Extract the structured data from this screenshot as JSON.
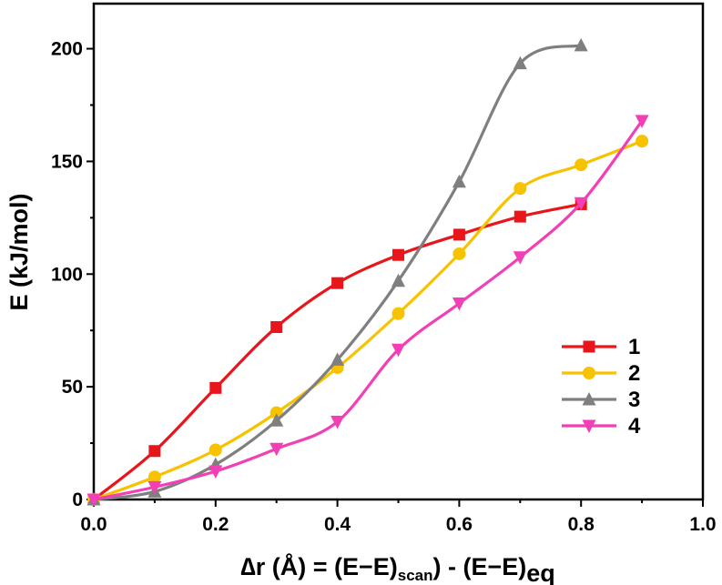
{
  "chart_data": {
    "type": "line",
    "title": "",
    "xlabel": {
      "delta_r": "∆r (Å) = (E−E)",
      "sub_scan": "scan",
      "mid": ") - (E−E)",
      "sub_eq": "eq"
    },
    "ylabel": "E (kJ/mol)",
    "xlim": [
      0.0,
      1.0
    ],
    "ylim": [
      0,
      220
    ],
    "xticks": [
      "0.0",
      "0.2",
      "0.4",
      "0.6",
      "0.8",
      "1.0"
    ],
    "yticks": [
      "0",
      "50",
      "100",
      "150",
      "200"
    ],
    "grid": false,
    "legend_position": "bottom-right",
    "series": [
      {
        "name": "1",
        "color": "#e8161b",
        "marker": "square",
        "x": [
          0.0,
          0.1,
          0.2,
          0.3,
          0.4,
          0.5,
          0.6,
          0.7,
          0.8
        ],
        "y": [
          0,
          21.5,
          49.5,
          76.5,
          96,
          108.5,
          117.5,
          125.5,
          131
        ]
      },
      {
        "name": "2",
        "color": "#f7c200",
        "marker": "circle",
        "x": [
          0.0,
          0.1,
          0.2,
          0.3,
          0.4,
          0.5,
          0.6,
          0.7,
          0.8,
          0.9
        ],
        "y": [
          0,
          10,
          22,
          38.5,
          58.5,
          82.5,
          109,
          138,
          148.5,
          159
        ]
      },
      {
        "name": "3",
        "color": "#7f7f7f",
        "marker": "triangle-up",
        "x": [
          0.0,
          0.1,
          0.2,
          0.3,
          0.4,
          0.5,
          0.6,
          0.7,
          0.8
        ],
        "y": [
          0,
          3.5,
          15.5,
          35,
          62,
          97,
          141,
          193.5,
          201.5
        ]
      },
      {
        "name": "4",
        "color": "#f23fb5",
        "marker": "triangle-down",
        "x": [
          0.0,
          0.1,
          0.2,
          0.3,
          0.4,
          0.5,
          0.6,
          0.7,
          0.8,
          0.9
        ],
        "y": [
          0,
          5.5,
          12.5,
          22.5,
          34.5,
          66.5,
          87,
          107.5,
          131.5,
          168
        ]
      }
    ]
  }
}
